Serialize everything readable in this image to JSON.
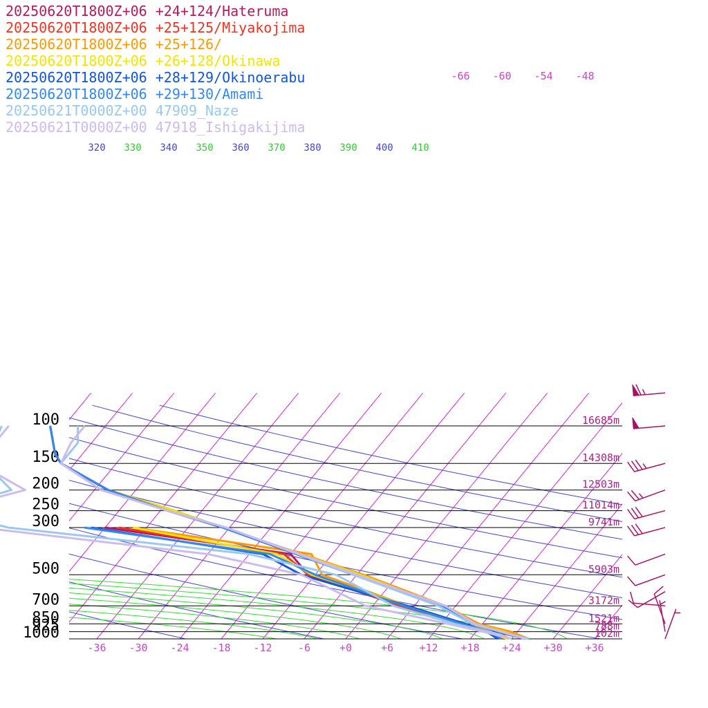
{
  "chart_data": {
    "type": "line",
    "title": "",
    "xlabel": "",
    "ylabel": "",
    "legend_placement": "top-left",
    "grid": true,
    "temperature_ticks": [
      "-36",
      "-30",
      "-24",
      "-18",
      "-12",
      "-6",
      "+0",
      "+6",
      "+12",
      "+18",
      "+24",
      "+30",
      "+36"
    ],
    "temperature_tick_values": [
      -36,
      -30,
      -24,
      -18,
      -12,
      -6,
      0,
      6,
      12,
      18,
      24,
      30,
      36
    ],
    "pressure_levels": [
      100,
      150,
      200,
      250,
      300,
      500,
      700,
      850,
      925,
      1000
    ],
    "pressure_labels": [
      "100",
      "150",
      "200",
      "250",
      "300",
      "500",
      "700",
      "850",
      "925",
      "1000"
    ],
    "height_labels": [
      {
        "p": 100,
        "text": "16685m"
      },
      {
        "p": 150,
        "text": "14308m"
      },
      {
        "p": 200,
        "text": "12503m"
      },
      {
        "p": 250,
        "text": "11014m"
      },
      {
        "p": 300,
        "text": "9741m"
      },
      {
        "p": 500,
        "text": "5903m"
      },
      {
        "p": 700,
        "text": "3172m"
      },
      {
        "p": 850,
        "text": "1521m"
      },
      {
        "p": 925,
        "text": "788m"
      },
      {
        "p": 1000,
        "text": "102m"
      }
    ],
    "isotherm_labels": [
      "-66",
      "-60",
      "-54",
      "-48"
    ],
    "theta_labels": [
      {
        "text": "320",
        "color": "#4444dd"
      },
      {
        "text": "330",
        "color": "#33cc33"
      },
      {
        "text": "340",
        "color": "#4444dd"
      },
      {
        "text": "350",
        "color": "#33cc33"
      },
      {
        "text": "360",
        "color": "#4444dd"
      },
      {
        "text": "370",
        "color": "#33cc33"
      },
      {
        "text": "380",
        "color": "#4444dd"
      },
      {
        "text": "390",
        "color": "#33cc33"
      },
      {
        "text": "400",
        "color": "#4444dd"
      },
      {
        "text": "410",
        "color": "#33cc33"
      }
    ],
    "colors": {
      "isotherm": "#dd22dd",
      "dry_adiabat": "#4444dd",
      "moist_adiabat": "#33dd33",
      "isobar": "#000000",
      "tick_label": "#cc44cc",
      "height_label": "#aa2288",
      "wind_barb": "#aa1166"
    },
    "series": [
      {
        "name": "20250620T1800Z+06 +24+124/Hateruma",
        "color": "#b5195f",
        "temperature": [
          [
            1000,
            26
          ],
          [
            925,
            21.5
          ],
          [
            850,
            17
          ],
          [
            700,
            10
          ],
          [
            500,
            -5.5
          ],
          [
            300,
            -31
          ],
          [
            250,
            -40
          ],
          [
            200,
            -52
          ],
          [
            150,
            -62
          ],
          [
            135,
            -64
          ],
          [
            100,
            -68
          ]
        ],
        "dewpoint": [
          [
            1000,
            23
          ],
          [
            925,
            20
          ],
          [
            850,
            15.5
          ],
          [
            700,
            5
          ],
          [
            500,
            -13
          ],
          [
            400,
            -18
          ],
          [
            300,
            -48
          ]
        ]
      },
      {
        "name": "20250620T1800Z+06 +25+125/Miyakojima",
        "color": "#ee3322",
        "temperature": [
          [
            1000,
            26.5
          ],
          [
            925,
            22
          ],
          [
            850,
            17.5
          ],
          [
            700,
            10
          ],
          [
            500,
            -5.5
          ],
          [
            300,
            -31
          ],
          [
            250,
            -40
          ],
          [
            200,
            -52
          ],
          [
            150,
            -62
          ],
          [
            135,
            -64
          ],
          [
            100,
            -68
          ]
        ],
        "dewpoint": [
          [
            1000,
            23
          ],
          [
            925,
            19.5
          ],
          [
            850,
            15
          ],
          [
            700,
            4
          ],
          [
            500,
            -13
          ],
          [
            400,
            -19
          ],
          [
            300,
            -46
          ]
        ]
      },
      {
        "name": "20250620T1800Z+06 +25+126/",
        "color": "#ff9900",
        "temperature": [
          [
            1000,
            26.5
          ],
          [
            925,
            23
          ],
          [
            850,
            17.5
          ],
          [
            700,
            10.5
          ],
          [
            500,
            -5
          ],
          [
            300,
            -31
          ],
          [
            250,
            -41
          ],
          [
            200,
            -52
          ],
          [
            150,
            -62
          ],
          [
            135,
            -64
          ],
          [
            100,
            -68
          ]
        ],
        "dewpoint": [
          [
            1000,
            23.5
          ],
          [
            925,
            21.5
          ],
          [
            850,
            14.5
          ],
          [
            700,
            5
          ],
          [
            500,
            -11
          ],
          [
            400,
            -15
          ],
          [
            300,
            -44
          ]
        ]
      },
      {
        "name": "20250620T1800Z+06 +26+128/Okinawa",
        "color": "#f2e600",
        "temperature": [
          [
            1000,
            26
          ],
          [
            925,
            22
          ],
          [
            850,
            17
          ],
          [
            700,
            10
          ],
          [
            500,
            -5.5
          ],
          [
            300,
            -31
          ],
          [
            250,
            -40
          ],
          [
            200,
            -52
          ],
          [
            150,
            -62
          ],
          [
            135,
            -64
          ],
          [
            100,
            -68
          ]
        ],
        "dewpoint": [
          [
            1000,
            23.5
          ],
          [
            925,
            19
          ],
          [
            850,
            14
          ],
          [
            700,
            5
          ],
          [
            500,
            -12.5
          ],
          [
            400,
            -20
          ],
          [
            300,
            -44
          ]
        ]
      },
      {
        "name": "20250620T1800Z+06 +28+129/Okinoerabu",
        "color": "#1155dd",
        "temperature": [
          [
            1000,
            26
          ],
          [
            925,
            21
          ],
          [
            850,
            17
          ],
          [
            700,
            10
          ],
          [
            500,
            -6.5
          ],
          [
            300,
            -31
          ],
          [
            250,
            -41
          ],
          [
            200,
            -52
          ],
          [
            150,
            -62
          ],
          [
            135,
            -64
          ],
          [
            100,
            -68
          ]
        ],
        "dewpoint": [
          [
            1000,
            22
          ],
          [
            925,
            19.5
          ],
          [
            850,
            15.5
          ],
          [
            700,
            5
          ],
          [
            500,
            -14
          ],
          [
            400,
            -22
          ],
          [
            300,
            -50
          ]
        ]
      },
      {
        "name": "20250620T1800Z+06 +29+130/Amami",
        "color": "#3388ee",
        "temperature": [
          [
            1000,
            26
          ],
          [
            925,
            21.5
          ],
          [
            850,
            17
          ],
          [
            700,
            10
          ],
          [
            500,
            -6
          ],
          [
            300,
            -31
          ],
          [
            250,
            -41
          ],
          [
            200,
            -52
          ],
          [
            150,
            -62
          ],
          [
            135,
            -64
          ],
          [
            100,
            -68
          ]
        ],
        "dewpoint": [
          [
            1000,
            22.5
          ],
          [
            925,
            20
          ],
          [
            850,
            15
          ],
          [
            700,
            4.5
          ],
          [
            500,
            -12
          ],
          [
            400,
            -21
          ],
          [
            300,
            -51
          ]
        ]
      },
      {
        "name": "20250621T0000Z+00 47909_Naze",
        "color": "#99c8f0",
        "temperature": [
          [
            1000,
            26.5
          ],
          [
            925,
            21.5
          ],
          [
            850,
            16.5
          ],
          [
            700,
            9.5
          ],
          [
            500,
            -6.5
          ],
          [
            300,
            -30.5
          ],
          [
            250,
            -41
          ],
          [
            200,
            -53
          ],
          [
            150,
            -62
          ],
          [
            120,
            -62
          ],
          [
            100,
            -64
          ]
        ],
        "dewpoint": [
          [
            1000,
            24
          ],
          [
            925,
            20
          ],
          [
            850,
            14
          ],
          [
            700,
            3
          ],
          [
            500,
            -9
          ],
          [
            400,
            -24
          ],
          [
            300,
            -62
          ],
          [
            250,
            -74
          ],
          [
            200,
            -66
          ],
          [
            150,
            -73
          ],
          [
            100,
            -75
          ]
        ]
      },
      {
        "name": "20250621T0000Z+00 47918_Ishigakijima",
        "color": "#ccbbee",
        "temperature": [
          [
            1000,
            26
          ],
          [
            925,
            21.5
          ],
          [
            850,
            17
          ],
          [
            700,
            10.5
          ],
          [
            500,
            -6
          ],
          [
            300,
            -30.5
          ],
          [
            250,
            -41
          ],
          [
            200,
            -53
          ],
          [
            150,
            -62
          ],
          [
            120,
            -63
          ],
          [
            100,
            -63
          ]
        ],
        "dewpoint": [
          [
            1000,
            24
          ],
          [
            925,
            19
          ],
          [
            850,
            13
          ],
          [
            700,
            -1
          ],
          [
            500,
            -14
          ],
          [
            400,
            -30
          ],
          [
            300,
            -66
          ],
          [
            250,
            -73
          ],
          [
            200,
            -64
          ],
          [
            150,
            -74
          ],
          [
            100,
            -74
          ]
        ]
      }
    ],
    "wind_barbs": [
      {
        "p": 70,
        "dir": 265,
        "speed": 65
      },
      {
        "p": 100,
        "dir": 265,
        "speed": 50
      },
      {
        "p": 150,
        "dir": 255,
        "speed": 35
      },
      {
        "p": 200,
        "dir": 250,
        "speed": 25
      },
      {
        "p": 250,
        "dir": 255,
        "speed": 30
      },
      {
        "p": 300,
        "dir": 255,
        "speed": 30
      },
      {
        "p": 400,
        "dir": 250,
        "speed": 10
      },
      {
        "p": 500,
        "dir": 250,
        "speed": 10
      },
      {
        "p": 600,
        "dir": 240,
        "speed": 10
      },
      {
        "p": 700,
        "dir": 275,
        "speed": 10
      },
      {
        "p": 850,
        "dir": 340,
        "speed": 10
      },
      {
        "p": 925,
        "dir": 350,
        "speed": 5
      },
      {
        "p": 1000,
        "dir": 20,
        "speed": 5
      }
    ]
  }
}
